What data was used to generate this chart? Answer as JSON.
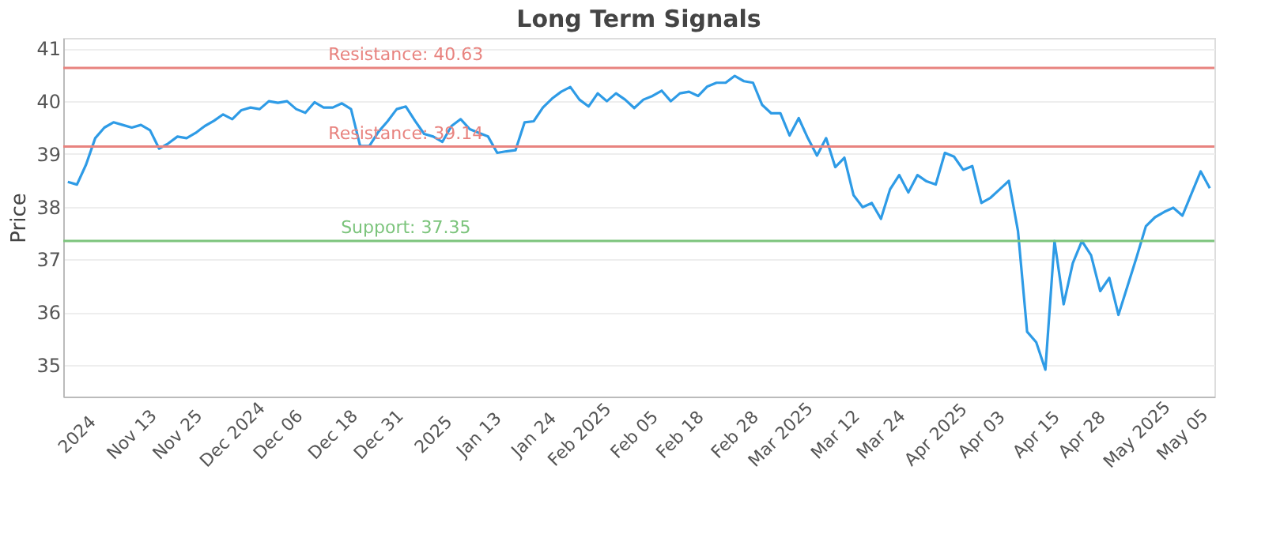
{
  "chart_data": {
    "type": "line",
    "title": "Long Term Signals",
    "ylabel": "Price",
    "categories": [
      null,
      "2024",
      null,
      null,
      null,
      null,
      null,
      "Nov 13",
      null,
      null,
      null,
      null,
      "Nov 25",
      null,
      null,
      null,
      null,
      null,
      "Dec 2024",
      null,
      null,
      null,
      null,
      "Dec 06",
      null,
      null,
      null,
      null,
      null,
      "Dec 18",
      null,
      null,
      null,
      null,
      "Dec 31",
      null,
      null,
      null,
      null,
      null,
      "2025",
      null,
      null,
      null,
      null,
      "Jan 13",
      null,
      null,
      null,
      null,
      null,
      "Jan 24",
      null,
      null,
      null,
      null,
      "Feb 2025",
      null,
      null,
      null,
      null,
      null,
      "Feb 05",
      null,
      null,
      null,
      null,
      "Feb 18",
      null,
      null,
      null,
      null,
      null,
      "Feb 28",
      null,
      null,
      null,
      null,
      "Mar 2025",
      null,
      null,
      null,
      null,
      null,
      "Mar 12",
      null,
      null,
      null,
      null,
      "Mar 24",
      null,
      null,
      null,
      null,
      null,
      "Apr 2025",
      null,
      null,
      null,
      null,
      "Apr 03",
      null,
      null,
      null,
      null,
      null,
      "Apr 15",
      null,
      null,
      null,
      null,
      "Apr 28",
      null,
      null,
      null,
      null,
      null,
      "May 2025",
      null,
      null,
      null,
      null,
      "May 05",
      null,
      null,
      null
    ],
    "series": [
      {
        "color": "#2e9be6",
        "values": [
          38.47,
          38.42,
          38.8,
          39.3,
          39.5,
          39.6,
          39.55,
          39.5,
          39.55,
          39.45,
          39.1,
          39.2,
          39.33,
          39.3,
          39.4,
          39.53,
          39.63,
          39.75,
          39.66,
          39.83,
          39.88,
          39.85,
          40.0,
          39.97,
          40.0,
          39.85,
          39.78,
          39.98,
          39.88,
          39.88,
          39.96,
          39.85,
          39.15,
          39.15,
          39.42,
          39.62,
          39.85,
          39.9,
          39.63,
          39.38,
          39.33,
          39.23,
          39.53,
          39.66,
          39.47,
          39.4,
          39.33,
          39.02,
          39.05,
          39.07,
          39.6,
          39.62,
          39.88,
          40.05,
          40.18,
          40.27,
          40.03,
          39.9,
          40.15,
          40.0,
          40.15,
          40.03,
          39.87,
          40.03,
          40.1,
          40.2,
          40.0,
          40.15,
          40.18,
          40.1,
          40.28,
          40.35,
          40.35,
          40.48,
          40.38,
          40.35,
          39.93,
          39.77,
          39.77,
          39.35,
          39.68,
          39.3,
          38.97,
          39.3,
          38.75,
          38.93,
          38.22,
          37.99,
          38.07,
          37.77,
          38.33,
          38.6,
          38.27,
          38.6,
          38.48,
          38.42,
          39.02,
          38.95,
          38.7,
          38.77,
          38.07,
          38.17,
          38.33,
          38.49,
          37.54,
          35.63,
          35.43,
          34.91,
          37.35,
          36.15,
          36.93,
          37.35,
          37.08,
          36.4,
          36.65,
          35.95,
          36.5,
          37.05,
          37.63,
          37.8,
          37.9,
          37.98,
          37.83,
          38.25,
          38.67,
          38.35
        ]
      }
    ],
    "ylim": [
      34.4,
      41.2
    ],
    "yticks": [
      35,
      36,
      37,
      38,
      39,
      40,
      41
    ],
    "grid": "y",
    "ref_lines": [
      {
        "axis": "y",
        "value": 40.63,
        "label": "Resistance: 40.63",
        "color": "#e8837f"
      },
      {
        "axis": "y",
        "value": 39.14,
        "label": "Resistance: 39.14",
        "color": "#e8837f"
      },
      {
        "axis": "y",
        "value": 37.35,
        "label": "Support: 37.35",
        "color": "#7cc47c"
      }
    ]
  }
}
